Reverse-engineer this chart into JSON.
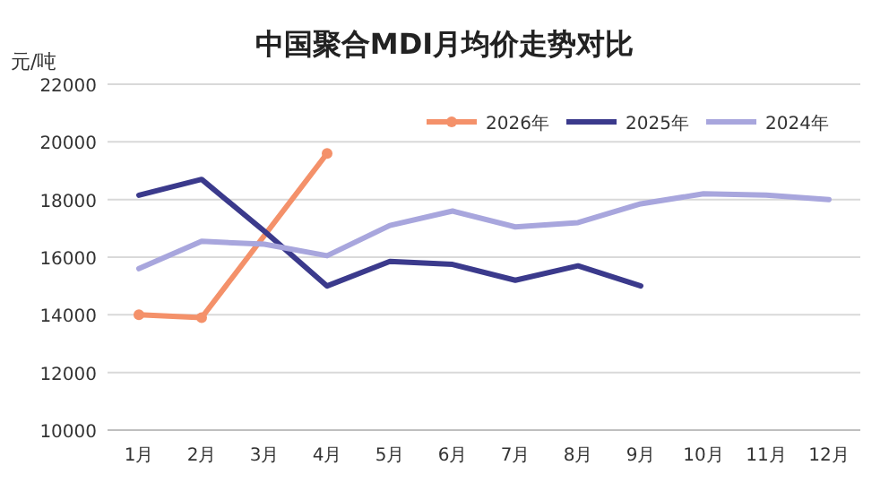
{
  "chart_data": {
    "type": "line",
    "title": "中国聚合MDI月均价走势对比",
    "ylabel": "元/吨",
    "categories": [
      "1月",
      "2月",
      "3月",
      "4月",
      "5月",
      "6月",
      "7月",
      "8月",
      "9月",
      "10月",
      "11月",
      "12月"
    ],
    "series": [
      {
        "name": "2026年",
        "color": "#f4916a",
        "marker": "circle",
        "values": [
          14000,
          13900,
          null,
          19600,
          null,
          null,
          null,
          null,
          null,
          null,
          null,
          null
        ]
      },
      {
        "name": "2025年",
        "color": "#3b3a8c",
        "marker": "none",
        "values": [
          18150,
          18700,
          16900,
          15000,
          15850,
          15750,
          15200,
          15700,
          15000,
          null,
          null,
          null
        ]
      },
      {
        "name": "2024年",
        "color": "#a8a6dd",
        "marker": "none",
        "values": [
          15600,
          16550,
          16450,
          16050,
          17100,
          17600,
          17050,
          17200,
          17850,
          18200,
          18150,
          18000
        ]
      }
    ],
    "ylim": [
      10000,
      22000
    ],
    "yticks": [
      10000,
      12000,
      14000,
      16000,
      18000,
      20000,
      22000
    ],
    "grid": "y",
    "legend": "top right"
  }
}
